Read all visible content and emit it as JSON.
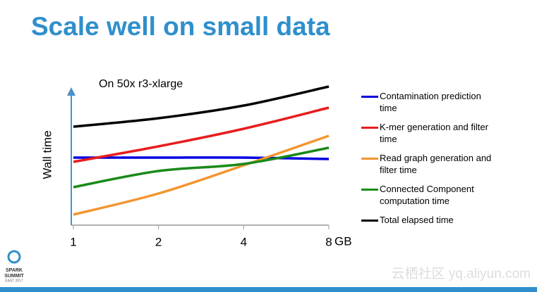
{
  "title": "Scale well on small data",
  "logo": {
    "name": "SPARK",
    "line2": "SUMMIT",
    "line3": "EAST 2017"
  },
  "watermark": "云栖社区 yq.aliyun.com",
  "chart_data": {
    "type": "line",
    "annotation": "On 50x r3-xlarge",
    "y_label": "Wall time",
    "x_label": "GB",
    "categories": [
      "1",
      "2",
      "4",
      "8"
    ],
    "ylim": [
      0,
      100
    ],
    "series": [
      {
        "name": "Contamination prediction time",
        "color": "#0000e0",
        "values": [
          48,
          48,
          48,
          47
        ]
      },
      {
        "name": "K-mer generation and filter time",
        "color": "#e81c1c",
        "values": [
          45,
          56,
          68.5,
          83.5
        ]
      },
      {
        "name": "Read graph generation and filter time",
        "color": "#f39530",
        "values": [
          7.5,
          22.5,
          42.5,
          63.5
        ]
      },
      {
        "name": "Connected Component computation time",
        "color": "#1a8a1a",
        "values": [
          27,
          38.5,
          43.5,
          55
        ]
      },
      {
        "name": "Total elapsed time",
        "color": "#000000",
        "values": [
          70,
          76,
          85,
          98.5
        ]
      }
    ]
  }
}
